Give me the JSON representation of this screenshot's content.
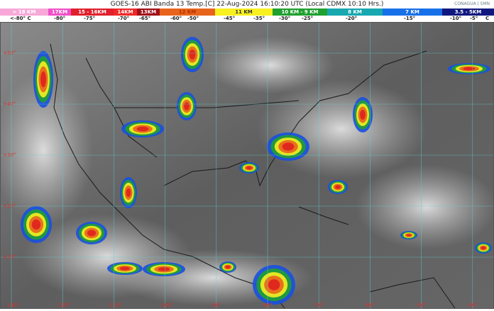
{
  "header": {
    "title": "GOES-16 ABI Banda 13 Temp.[C] 22-Aug-2024 16:10:20 UTC (Local CDMX  10:10 Hrs.)",
    "logos": [
      "CONAGUA",
      "SMN"
    ]
  },
  "scale": [
    {
      "label": "> 18 KM",
      "color": "#f7a8d8"
    },
    {
      "label": "17KM",
      "color": "#f050c8"
    },
    {
      "label": "15 - 16KM",
      "color": "#e0202c"
    },
    {
      "label": "14KM",
      "color": "#f02828"
    },
    {
      "label": "13KM",
      "color": "#a01018"
    },
    {
      "label": "12 KM",
      "color": "#e8641c"
    },
    {
      "label": "11 KM",
      "color": "#f8f020"
    },
    {
      "label": "10 KM -  9 KM",
      "color": "#20a030"
    },
    {
      "label": "8 KM",
      "color": "#18a8b0"
    },
    {
      "label": "7 KM",
      "color": "#1870e8"
    },
    {
      "label": "3.5 - 5KM",
      "color": "#101880"
    }
  ],
  "temperatures": [
    "<-80° C",
    "-80°",
    "-75°",
    "-70°",
    "-65°",
    "-60°",
    "-50°",
    "-45°",
    "-35°",
    "-30°",
    "-25°",
    "-20°",
    "-15°",
    "-10°",
    "-5°",
    "C"
  ],
  "map": {
    "latitudes": [
      "+50°",
      "+40°",
      "+30°",
      "+20°",
      "+10°"
    ],
    "longitudes": [
      "-130°",
      "-120°",
      "-110°",
      "-100°",
      "-90°",
      "-80°",
      "-70°",
      "-60°",
      "-50°",
      "-40°"
    ],
    "grid_color": "#5fd0d0"
  }
}
